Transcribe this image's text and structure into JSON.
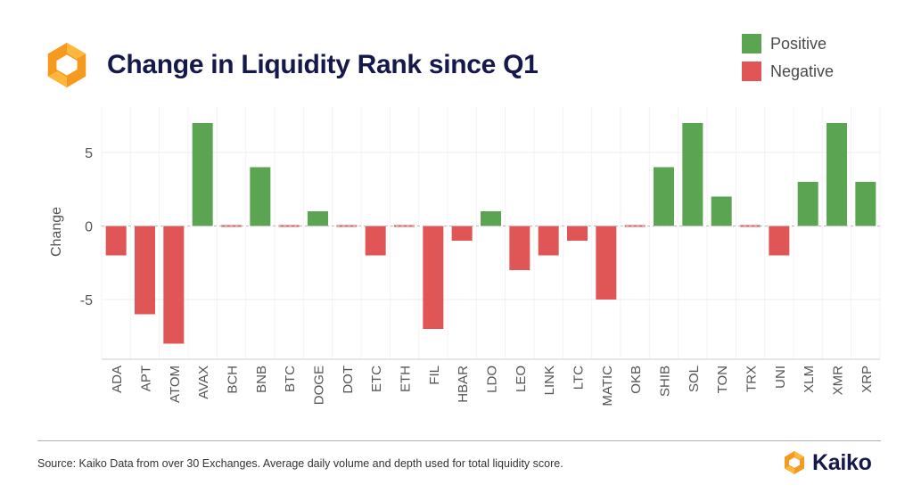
{
  "header": {
    "title": "Change in Liquidity Rank since Q1"
  },
  "legend": {
    "positive_label": "Positive",
    "negative_label": "Negative"
  },
  "colors": {
    "positive": "#5ba552",
    "negative": "#e05656",
    "title": "#14184a",
    "logo_orange": "#f59a1e",
    "logo_light": "#fcb73c"
  },
  "footer": {
    "source": "Source: Kaiko Data from over 30 Exchanges. Average daily volume and depth used for total liquidity score.",
    "brand_name": "Kaiko"
  },
  "icons": {
    "header_logo": "kaiko-logo-icon",
    "footer_logo": "kaiko-logo-icon"
  },
  "chart_data": {
    "type": "bar",
    "title": "Change in Liquidity Rank since Q1",
    "xlabel": "",
    "ylabel": "Change",
    "ylim": [
      -9,
      8
    ],
    "yticks": [
      -5,
      0,
      5
    ],
    "grid": true,
    "legend_position": "top-right",
    "categories": [
      "ADA",
      "APT",
      "ATOM",
      "AVAX",
      "BCH",
      "BNB",
      "BTC",
      "DOGE",
      "DOT",
      "ETC",
      "ETH",
      "FIL",
      "HBAR",
      "LDO",
      "LEO",
      "LINK",
      "LTC",
      "MATIC",
      "OKB",
      "SHIB",
      "SOL",
      "TON",
      "TRX",
      "UNI",
      "XLM",
      "XMR",
      "XRP"
    ],
    "values": [
      -2,
      -6,
      -8,
      7,
      0,
      4,
      0,
      1,
      0,
      -2,
      0,
      -7,
      -1,
      1,
      -3,
      -2,
      -1,
      -5,
      0,
      4,
      7,
      2,
      0,
      -2,
      3,
      7,
      3
    ]
  }
}
